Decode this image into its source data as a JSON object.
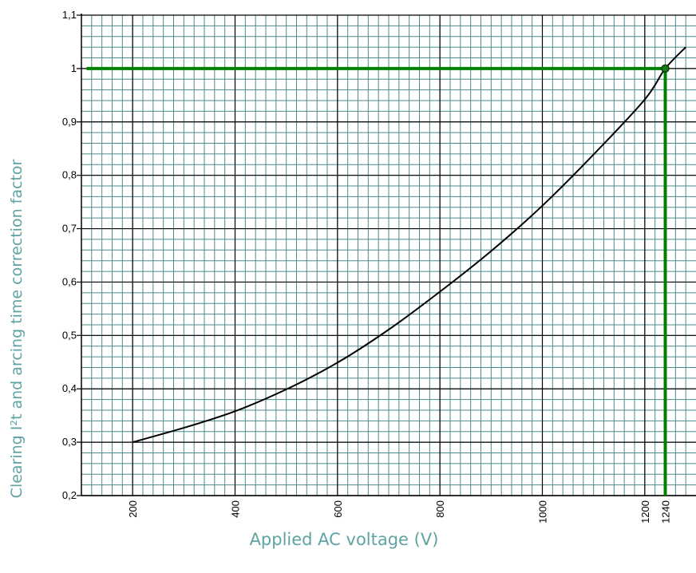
{
  "chart_data": {
    "type": "line",
    "xlabel": "Applied AC voltage (V)",
    "ylabel": "Clearing I²t and arcing time correction factor",
    "xlim": [
      100,
      1300
    ],
    "ylim": [
      0.2,
      1.1
    ],
    "x_ticks": [
      {
        "value": 200,
        "label": "200"
      },
      {
        "value": 400,
        "label": "400"
      },
      {
        "value": 600,
        "label": "600"
      },
      {
        "value": 800,
        "label": "800"
      },
      {
        "value": 1000,
        "label": "1000"
      },
      {
        "value": 1200,
        "label": "1200"
      },
      {
        "value": 1240,
        "label": "1240"
      }
    ],
    "y_ticks": [
      {
        "value": 0.2,
        "label": "0,2"
      },
      {
        "value": 0.3,
        "label": "0,3"
      },
      {
        "value": 0.4,
        "label": "0,4"
      },
      {
        "value": 0.5,
        "label": "0,5"
      },
      {
        "value": 0.6,
        "label": "0,6"
      },
      {
        "value": 0.7,
        "label": "0,7"
      },
      {
        "value": 0.8,
        "label": "0,8"
      },
      {
        "value": 0.9,
        "label": "0,9"
      },
      {
        "value": 1.0,
        "label": "1"
      },
      {
        "value": 1.1,
        "label": "1,1"
      }
    ],
    "grid": true,
    "minor_grid": {
      "x_step": 20,
      "y_step": 0.02
    },
    "series": [
      {
        "color": "#000000",
        "x": [
          200,
          300,
          400,
          500,
          600,
          700,
          800,
          900,
          1000,
          1100,
          1200,
          1240,
          1280
        ],
        "y": [
          0.3,
          0.327,
          0.358,
          0.399,
          0.449,
          0.511,
          0.582,
          0.658,
          0.743,
          0.839,
          0.942,
          1.0,
          1.04
        ]
      }
    ],
    "annotation": {
      "color": "#008000",
      "point": {
        "x": 1240,
        "y": 1.0
      },
      "horizontal_from_x": 110,
      "vertical_to_y": 0.2
    },
    "colors": {
      "minor_grid": "#4d8a8a",
      "major_grid": "#000000",
      "highlight": "#008000",
      "axis_label": "#5fa3a3"
    }
  }
}
